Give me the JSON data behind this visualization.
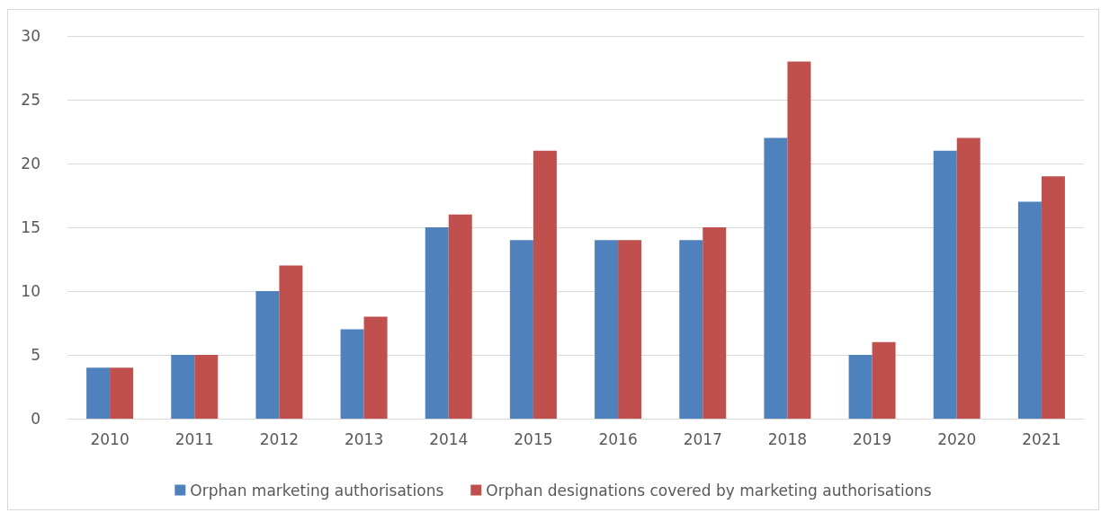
{
  "chart_data": {
    "type": "bar",
    "categories": [
      "2010",
      "2011",
      "2012",
      "2013",
      "2014",
      "2015",
      "2016",
      "2017",
      "2018",
      "2019",
      "2020",
      "2021"
    ],
    "series": [
      {
        "name": "Orphan marketing authorisations",
        "color": "#4f81bd",
        "values": [
          4,
          5,
          10,
          7,
          15,
          14,
          14,
          14,
          22,
          5,
          21,
          17
        ]
      },
      {
        "name": "Orphan designations covered by marketing authorisations",
        "color": "#c0504d",
        "values": [
          4,
          5,
          12,
          8,
          16,
          21,
          14,
          15,
          28,
          6,
          22,
          19
        ]
      }
    ],
    "ylim": [
      0,
      30
    ],
    "yticks": [
      0,
      5,
      10,
      15,
      20,
      25,
      30
    ],
    "grid": "y",
    "legend": "bottom"
  }
}
